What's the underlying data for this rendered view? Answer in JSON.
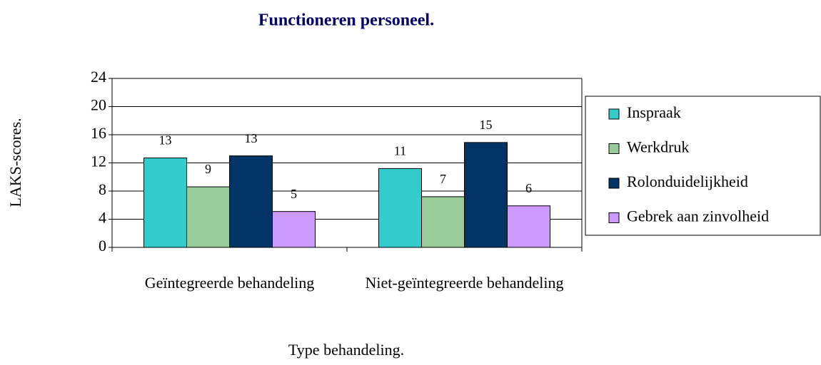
{
  "chart_data": {
    "type": "bar",
    "title": "Functioneren personeel.",
    "xlabel": "Type behandeling.",
    "ylabel": "LAKS-scores.",
    "categories": [
      "Geïntegreerde behandeling",
      "Niet-geïntegreerde behandeling"
    ],
    "series": [
      {
        "name": "Inspraak",
        "color": "#33cccc",
        "values": [
          12.7,
          11.2
        ],
        "value_labels": [
          "13",
          "11"
        ]
      },
      {
        "name": "Werkdruk",
        "color": "#99cc99",
        "values": [
          8.6,
          7.2
        ],
        "value_labels": [
          "9",
          "7"
        ]
      },
      {
        "name": "Rolonduidelijkheid",
        "color": "#003366",
        "values": [
          13.0,
          14.9
        ],
        "value_labels": [
          "13",
          "15"
        ]
      },
      {
        "name": "Gebrek aan zinvolheid",
        "color": "#cc99ff",
        "values": [
          5.1,
          5.9
        ],
        "value_labels": [
          "5",
          "6"
        ]
      }
    ],
    "ylim": [
      0,
      24
    ],
    "yticks": [
      0,
      4,
      8,
      12,
      16,
      20,
      24
    ],
    "grid": true,
    "legend": "right"
  }
}
